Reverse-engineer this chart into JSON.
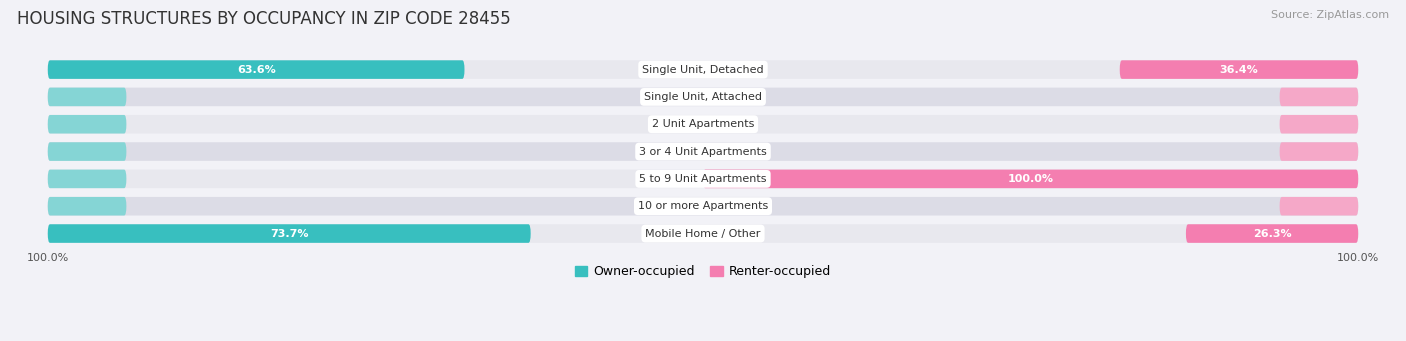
{
  "title": "HOUSING STRUCTURES BY OCCUPANCY IN ZIP CODE 28455",
  "source": "Source: ZipAtlas.com",
  "categories": [
    "Single Unit, Detached",
    "Single Unit, Attached",
    "2 Unit Apartments",
    "3 or 4 Unit Apartments",
    "5 to 9 Unit Apartments",
    "10 or more Apartments",
    "Mobile Home / Other"
  ],
  "owner_pct": [
    63.6,
    0.0,
    0.0,
    0.0,
    0.0,
    0.0,
    73.7
  ],
  "renter_pct": [
    36.4,
    0.0,
    0.0,
    0.0,
    100.0,
    0.0,
    26.3
  ],
  "owner_color": "#38BFBF",
  "renter_color": "#F47EB0",
  "owner_stub_color": "#85D5D5",
  "renter_stub_color": "#F5A8C8",
  "owner_label": "Owner-occupied",
  "renter_label": "Renter-occupied",
  "row_bg_color": "#E8E8EE",
  "row_bg_alt": "#DCDCE6",
  "title_fontsize": 12,
  "source_fontsize": 8,
  "axis_tick_fontsize": 8,
  "cat_label_fontsize": 8,
  "val_label_fontsize": 8
}
